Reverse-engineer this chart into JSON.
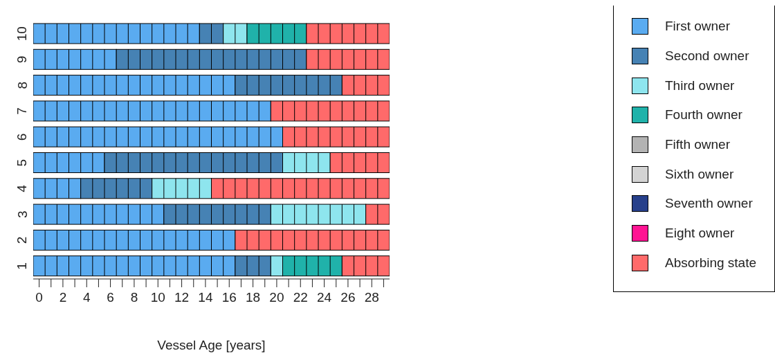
{
  "chart_data": {
    "type": "bar",
    "orientation": "horizontal",
    "stacked": true,
    "xlabel": "Vessel Age [years]",
    "categories": [
      "10",
      "9",
      "8",
      "7",
      "6",
      "5",
      "4",
      "3",
      "2",
      "1"
    ],
    "series": [
      {
        "name": "First owner",
        "color": "#5aabf0",
        "values": [
          14,
          7,
          17,
          20,
          21,
          6,
          4,
          11,
          17,
          17
        ]
      },
      {
        "name": "Second owner",
        "color": "#4682b4",
        "values": [
          2,
          16,
          9,
          0,
          0,
          15,
          6,
          9,
          0,
          3
        ]
      },
      {
        "name": "Third owner",
        "color": "#8ee5ee",
        "values": [
          2,
          0,
          0,
          0,
          0,
          4,
          5,
          8,
          0,
          1
        ]
      },
      {
        "name": "Fourth owner",
        "color": "#20b2aa",
        "values": [
          5,
          0,
          0,
          0,
          0,
          0,
          0,
          0,
          0,
          5
        ]
      },
      {
        "name": "Fifth owner",
        "color": "#b3b3b3",
        "values": [
          0,
          0,
          0,
          0,
          0,
          0,
          0,
          0,
          0,
          0
        ]
      },
      {
        "name": "Sixth owner",
        "color": "#d3d3d3",
        "values": [
          0,
          0,
          0,
          0,
          0,
          0,
          0,
          0,
          0,
          0
        ]
      },
      {
        "name": "Seventh owner",
        "color": "#27408b",
        "values": [
          0,
          0,
          0,
          0,
          0,
          0,
          0,
          0,
          0,
          0
        ]
      },
      {
        "name": "Eight owner",
        "color": "#ff1493",
        "values": [
          0,
          0,
          0,
          0,
          0,
          0,
          0,
          0,
          0,
          0
        ]
      },
      {
        "name": "Absorbing state",
        "color": "#ff6a6a",
        "values": [
          7,
          7,
          4,
          10,
          9,
          5,
          15,
          2,
          13,
          4
        ]
      }
    ],
    "xlim": [
      0,
      30
    ],
    "xticks": [
      {
        "value": 0.5,
        "label": "0"
      },
      {
        "value": 1.5,
        "label": null
      },
      {
        "value": 2.5,
        "label": "2"
      },
      {
        "value": 3.5,
        "label": null
      },
      {
        "value": 4.5,
        "label": "4"
      },
      {
        "value": 5.5,
        "label": null
      },
      {
        "value": 6.5,
        "label": "6"
      },
      {
        "value": 7.5,
        "label": null
      },
      {
        "value": 8.5,
        "label": "8"
      },
      {
        "value": 9.5,
        "label": null
      },
      {
        "value": 10.5,
        "label": "10"
      },
      {
        "value": 11.5,
        "label": null
      },
      {
        "value": 12.5,
        "label": "12"
      },
      {
        "value": 13.5,
        "label": null
      },
      {
        "value": 14.5,
        "label": "14"
      },
      {
        "value": 15.5,
        "label": null
      },
      {
        "value": 16.5,
        "label": "16"
      },
      {
        "value": 17.5,
        "label": null
      },
      {
        "value": 18.5,
        "label": "18"
      },
      {
        "value": 19.5,
        "label": null
      },
      {
        "value": 20.5,
        "label": "20"
      },
      {
        "value": 21.5,
        "label": null
      },
      {
        "value": 22.5,
        "label": "22"
      },
      {
        "value": 23.5,
        "label": null
      },
      {
        "value": 24.5,
        "label": "24"
      },
      {
        "value": 25.5,
        "label": null
      },
      {
        "value": 26.5,
        "label": "26"
      },
      {
        "value": 27.5,
        "label": null
      },
      {
        "value": 28.5,
        "label": "28"
      },
      {
        "value": 29.5,
        "label": null
      }
    ],
    "grid": false,
    "legend": "right"
  }
}
